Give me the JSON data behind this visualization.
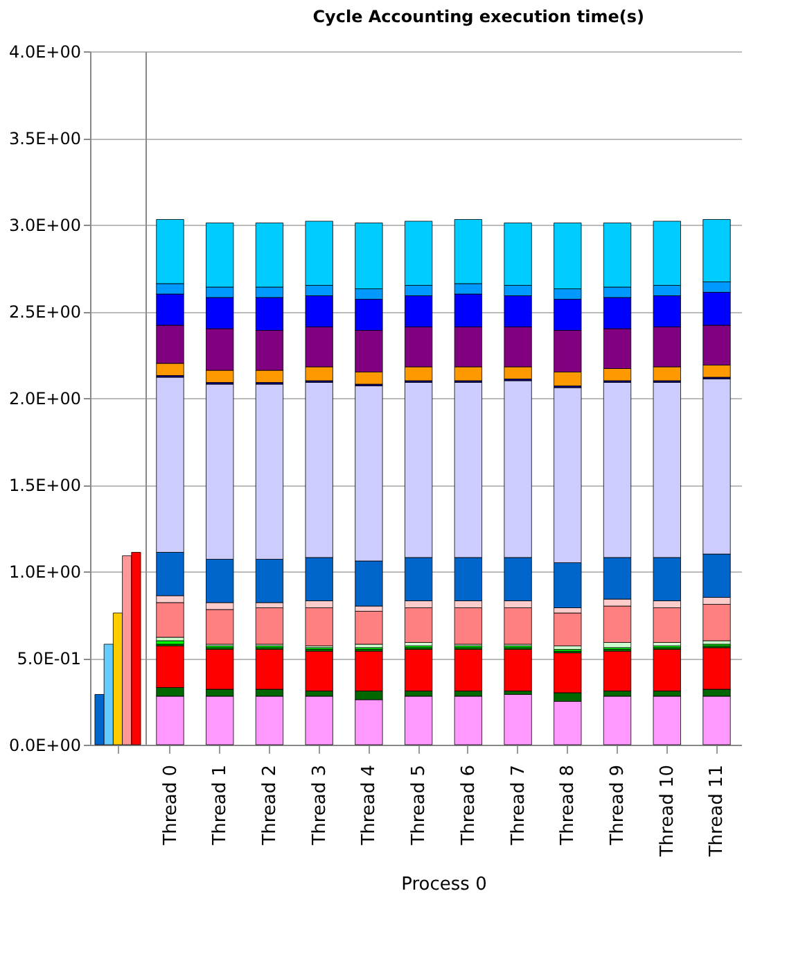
{
  "chart_data": [
    {
      "type": "bar",
      "categories": [
        null
      ],
      "ylim": [
        0,
        4
      ],
      "yticks": [
        {
          "value": 0,
          "label": "0.0E+00"
        },
        {
          "value": 0.5,
          "label": "5.0E-01"
        },
        {
          "value": 1,
          "label": "1.0E+00"
        },
        {
          "value": 1.5,
          "label": "1.5E+00"
        },
        {
          "value": 2,
          "label": "2.0E+00"
        },
        {
          "value": 2.5,
          "label": "2.5E+00"
        },
        {
          "value": 3,
          "label": "3.0E+00"
        },
        {
          "value": 3.5,
          "label": "3.5E+00"
        },
        {
          "value": 4,
          "label": "4.0E+00"
        }
      ],
      "grid": "y",
      "series": [
        {
          "color": "#0066cc",
          "values": [
            0.29
          ]
        },
        {
          "color": "#66ccff",
          "values": [
            0.58
          ]
        },
        {
          "color": "#ffcc00",
          "values": [
            0.76
          ]
        },
        {
          "color": "#ff9999",
          "values": [
            1.09
          ]
        },
        {
          "color": "#ff0000",
          "values": [
            1.11
          ]
        }
      ]
    },
    {
      "type": "bar",
      "title": "Cycle Accounting execution time(s)",
      "xlabel": "Process 0",
      "stacked": true,
      "tick_labels": "x",
      "grid": "y",
      "ylim": [
        0,
        4
      ],
      "yticks": [
        0,
        0.5,
        1,
        1.5,
        2,
        2.5,
        3,
        3.5,
        4
      ],
      "categories": [
        "Thread 0",
        "Thread 1",
        "Thread 2",
        "Thread 3",
        "Thread 4",
        "Thread 5",
        "Thread 6",
        "Thread 7",
        "Thread 8",
        "Thread 9",
        "Thread 10",
        "Thread 11"
      ],
      "series": [
        {
          "color": "#ff99ff",
          "values": [
            0.28,
            0.28,
            0.28,
            0.28,
            0.26,
            0.28,
            0.28,
            0.29,
            0.25,
            0.28,
            0.28,
            0.28
          ]
        },
        {
          "color": "#006600",
          "values": [
            0.05,
            0.04,
            0.04,
            0.03,
            0.05,
            0.03,
            0.03,
            0.02,
            0.05,
            0.03,
            0.03,
            0.04
          ]
        },
        {
          "color": "#ff0000",
          "values": [
            0.24,
            0.23,
            0.23,
            0.23,
            0.23,
            0.24,
            0.24,
            0.24,
            0.23,
            0.23,
            0.24,
            0.24
          ]
        },
        {
          "color": "#008000",
          "values": [
            0.01,
            0.01,
            0.01,
            0.01,
            0.01,
            0.01,
            0.01,
            0.01,
            0.01,
            0.01,
            0.01,
            0.01
          ]
        },
        {
          "color": "#00ff00",
          "values": [
            0.02,
            0.01,
            0.01,
            0.01,
            0.01,
            0.01,
            0.01,
            0.01,
            0.01,
            0.01,
            0.01,
            0.01
          ]
        },
        {
          "color": "#ccffcc",
          "values": [
            0.02,
            0.01,
            0.01,
            0.01,
            0.02,
            0.02,
            0.01,
            0.01,
            0.02,
            0.03,
            0.02,
            0.02
          ]
        },
        {
          "color": "#ff8080",
          "values": [
            0.2,
            0.2,
            0.21,
            0.22,
            0.19,
            0.2,
            0.21,
            0.21,
            0.19,
            0.21,
            0.2,
            0.21
          ]
        },
        {
          "color": "#ffcccc",
          "values": [
            0.04,
            0.04,
            0.03,
            0.04,
            0.03,
            0.04,
            0.04,
            0.04,
            0.03,
            0.04,
            0.04,
            0.04
          ]
        },
        {
          "color": "#0066cc",
          "values": [
            0.25,
            0.25,
            0.25,
            0.25,
            0.26,
            0.25,
            0.25,
            0.25,
            0.26,
            0.24,
            0.25,
            0.25
          ]
        },
        {
          "color": "#ccccff",
          "values": [
            1.01,
            1.01,
            1.01,
            1.01,
            1.01,
            1.01,
            1.01,
            1.02,
            1.01,
            1.01,
            1.01,
            1.01
          ]
        },
        {
          "color": "#000080",
          "values": [
            0.01,
            0.01,
            0.01,
            0.01,
            0.01,
            0.01,
            0.01,
            0.01,
            0.01,
            0.01,
            0.01,
            0.01
          ]
        },
        {
          "color": "#ff9900",
          "values": [
            0.07,
            0.07,
            0.07,
            0.08,
            0.07,
            0.08,
            0.08,
            0.07,
            0.08,
            0.07,
            0.08,
            0.07
          ]
        },
        {
          "color": "#800080",
          "values": [
            0.22,
            0.24,
            0.23,
            0.23,
            0.24,
            0.23,
            0.23,
            0.23,
            0.24,
            0.23,
            0.23,
            0.23
          ]
        },
        {
          "color": "#0000ff",
          "values": [
            0.18,
            0.18,
            0.19,
            0.18,
            0.18,
            0.18,
            0.19,
            0.18,
            0.18,
            0.18,
            0.18,
            0.19
          ]
        },
        {
          "color": "#0099ff",
          "values": [
            0.06,
            0.06,
            0.06,
            0.06,
            0.06,
            0.06,
            0.06,
            0.06,
            0.06,
            0.06,
            0.06,
            0.06
          ]
        },
        {
          "color": "#00ccff",
          "values": [
            0.37,
            0.37,
            0.37,
            0.37,
            0.38,
            0.37,
            0.37,
            0.36,
            0.38,
            0.37,
            0.37,
            0.36
          ]
        }
      ]
    }
  ]
}
